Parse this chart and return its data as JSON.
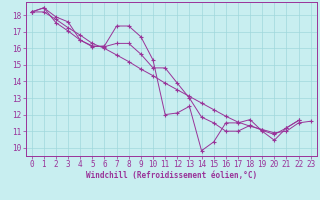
{
  "xlabel": "Windchill (Refroidissement éolien,°C)",
  "background_color": "#c8eef0",
  "grid_color": "#a0d8dc",
  "line_color": "#993399",
  "spine_color": "#993399",
  "xlim": [
    -0.5,
    23.5
  ],
  "ylim": [
    9.5,
    18.8
  ],
  "xticks": [
    0,
    1,
    2,
    3,
    4,
    5,
    6,
    7,
    8,
    9,
    10,
    11,
    12,
    13,
    14,
    15,
    16,
    17,
    18,
    19,
    20,
    21,
    22,
    23
  ],
  "yticks": [
    10,
    11,
    12,
    13,
    14,
    15,
    16,
    17,
    18
  ],
  "line1_y": [
    18.2,
    18.45,
    17.9,
    17.6,
    16.5,
    16.1,
    16.15,
    17.35,
    17.35,
    16.7,
    15.3,
    12.0,
    12.1,
    12.5,
    9.82,
    10.35,
    11.5,
    11.5,
    11.7,
    11.0,
    10.45,
    11.2,
    11.65,
    null
  ],
  "line2_y": [
    18.2,
    18.45,
    17.55,
    17.05,
    16.5,
    16.15,
    16.1,
    16.3,
    16.3,
    15.65,
    14.82,
    14.82,
    13.9,
    13.0,
    11.85,
    11.5,
    11.0,
    11.0,
    11.35,
    11.05,
    10.8,
    11.2,
    11.65,
    null
  ],
  "line3_y": [
    18.2,
    18.2,
    17.75,
    17.25,
    16.8,
    16.3,
    16.0,
    15.6,
    15.2,
    14.75,
    14.35,
    13.9,
    13.5,
    13.1,
    12.7,
    12.3,
    11.9,
    11.55,
    11.3,
    11.1,
    10.9,
    11.0,
    11.5,
    11.6
  ],
  "tick_fontsize": 5.5,
  "xlabel_fontsize": 5.5,
  "lw": 0.7,
  "ms": 2.5
}
